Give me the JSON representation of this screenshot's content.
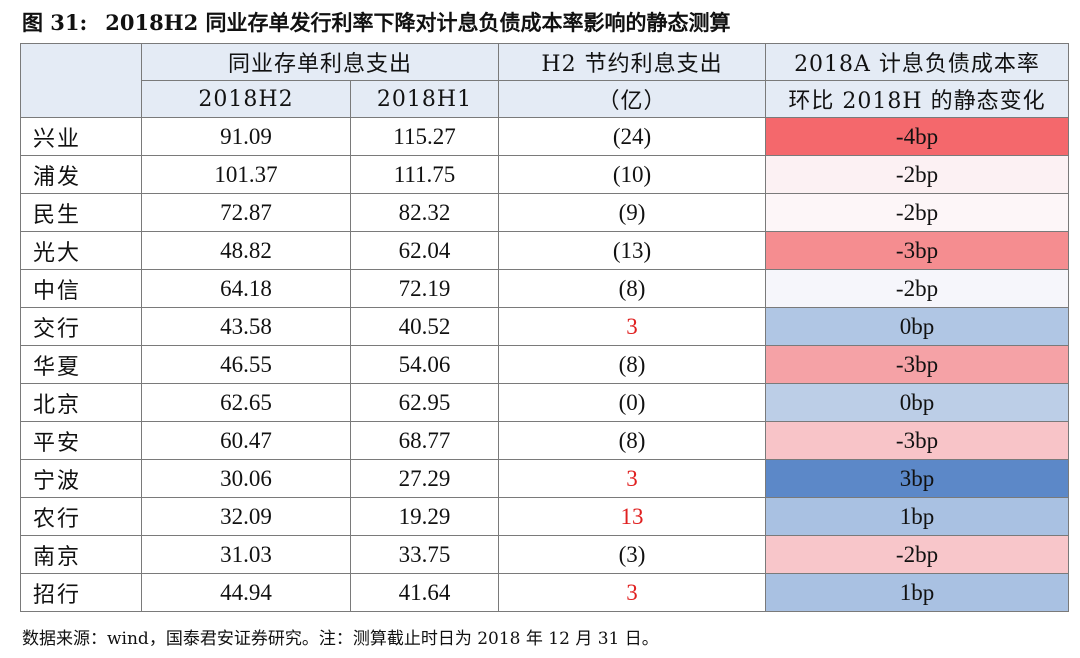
{
  "title": {
    "figure_label": "图 31:",
    "text": "2018H2 同业存单发行利率下降对计息负债成本率影响的静态测算"
  },
  "table": {
    "header": {
      "group_interbank": "同业存单利息支出",
      "col_h2_saving_line1": "H2 节约利息支出",
      "col_h2_saving_line2": "（亿）",
      "col_change_line1": "2018A 计息负债成本率",
      "col_change_line2": "环比 2018H 的静态变化",
      "sub_2018h2": "2018H2",
      "sub_2018h1": "2018H1"
    },
    "rows": [
      {
        "bank": "兴业",
        "h2": "91.09",
        "h1": "115.27",
        "saving": "(24)",
        "saving_positive": false,
        "change": "-4bp",
        "color": "#f4686c"
      },
      {
        "bank": "浦发",
        "h2": "101.37",
        "h1": "111.75",
        "saving": "(10)",
        "saving_positive": false,
        "change": "-2bp",
        "color": "#fcf1f3"
      },
      {
        "bank": "民生",
        "h2": "72.87",
        "h1": "82.32",
        "saving": "(9)",
        "saving_positive": false,
        "change": "-2bp",
        "color": "#fdf6f8"
      },
      {
        "bank": "光大",
        "h2": "48.82",
        "h1": "62.04",
        "saving": "(13)",
        "saving_positive": false,
        "change": "-3bp",
        "color": "#f58d90"
      },
      {
        "bank": "中信",
        "h2": "64.18",
        "h1": "72.19",
        "saving": "(8)",
        "saving_positive": false,
        "change": "-2bp",
        "color": "#f6f6fb"
      },
      {
        "bank": "交行",
        "h2": "43.58",
        "h1": "40.52",
        "saving": "3",
        "saving_positive": true,
        "change": "0bp",
        "color": "#b0c6e4"
      },
      {
        "bank": "华夏",
        "h2": "46.55",
        "h1": "54.06",
        "saving": "(8)",
        "saving_positive": false,
        "change": "-3bp",
        "color": "#f5a2a6"
      },
      {
        "bank": "北京",
        "h2": "62.65",
        "h1": "62.95",
        "saving": "(0)",
        "saving_positive": false,
        "change": "0bp",
        "color": "#bccee7"
      },
      {
        "bank": "平安",
        "h2": "60.47",
        "h1": "68.77",
        "saving": "(8)",
        "saving_positive": false,
        "change": "-3bp",
        "color": "#f8c4c8"
      },
      {
        "bank": "宁波",
        "h2": "30.06",
        "h1": "27.29",
        "saving": "3",
        "saving_positive": true,
        "change": "3bp",
        "color": "#5c88c8"
      },
      {
        "bank": "农行",
        "h2": "32.09",
        "h1": "19.29",
        "saving": "13",
        "saving_positive": true,
        "change": "1bp",
        "color": "#a9c1e2"
      },
      {
        "bank": "南京",
        "h2": "31.03",
        "h1": "33.75",
        "saving": "(3)",
        "saving_positive": false,
        "change": "-2bp",
        "color": "#f8c6ca"
      },
      {
        "bank": "招行",
        "h2": "44.94",
        "h1": "41.64",
        "saving": "3",
        "saving_positive": true,
        "change": "1bp",
        "color": "#a9c1e2"
      }
    ]
  },
  "source_note": "数据来源：wind，国泰君安证券研究。注：测算截止时日为 2018 年 12 月 31 日。"
}
